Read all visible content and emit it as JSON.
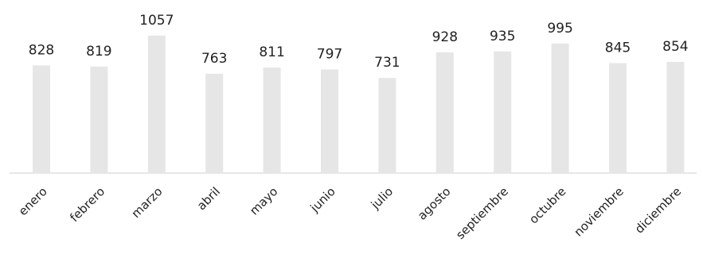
{
  "chart_data": {
    "type": "bar",
    "title": "",
    "xlabel": "",
    "ylabel": "",
    "categories": [
      "enero",
      "febrero",
      "marzo",
      "abril",
      "mayo",
      "junio",
      "julio",
      "agosto",
      "septiembre",
      "octubre",
      "noviembre",
      "diciembre"
    ],
    "values": [
      828,
      819,
      1057,
      763,
      811,
      797,
      731,
      928,
      935,
      995,
      845,
      854
    ],
    "value_labels": [
      "828",
      "819",
      "1057",
      "763",
      "811",
      "797",
      "731",
      "928",
      "935",
      "995",
      "845",
      "854"
    ],
    "ylim": [
      0,
      1200
    ],
    "grid": false,
    "legend": "none",
    "colors": {
      "bar": "#e6e6e6",
      "text": "#222222",
      "axis": "#cfcfcf"
    }
  }
}
